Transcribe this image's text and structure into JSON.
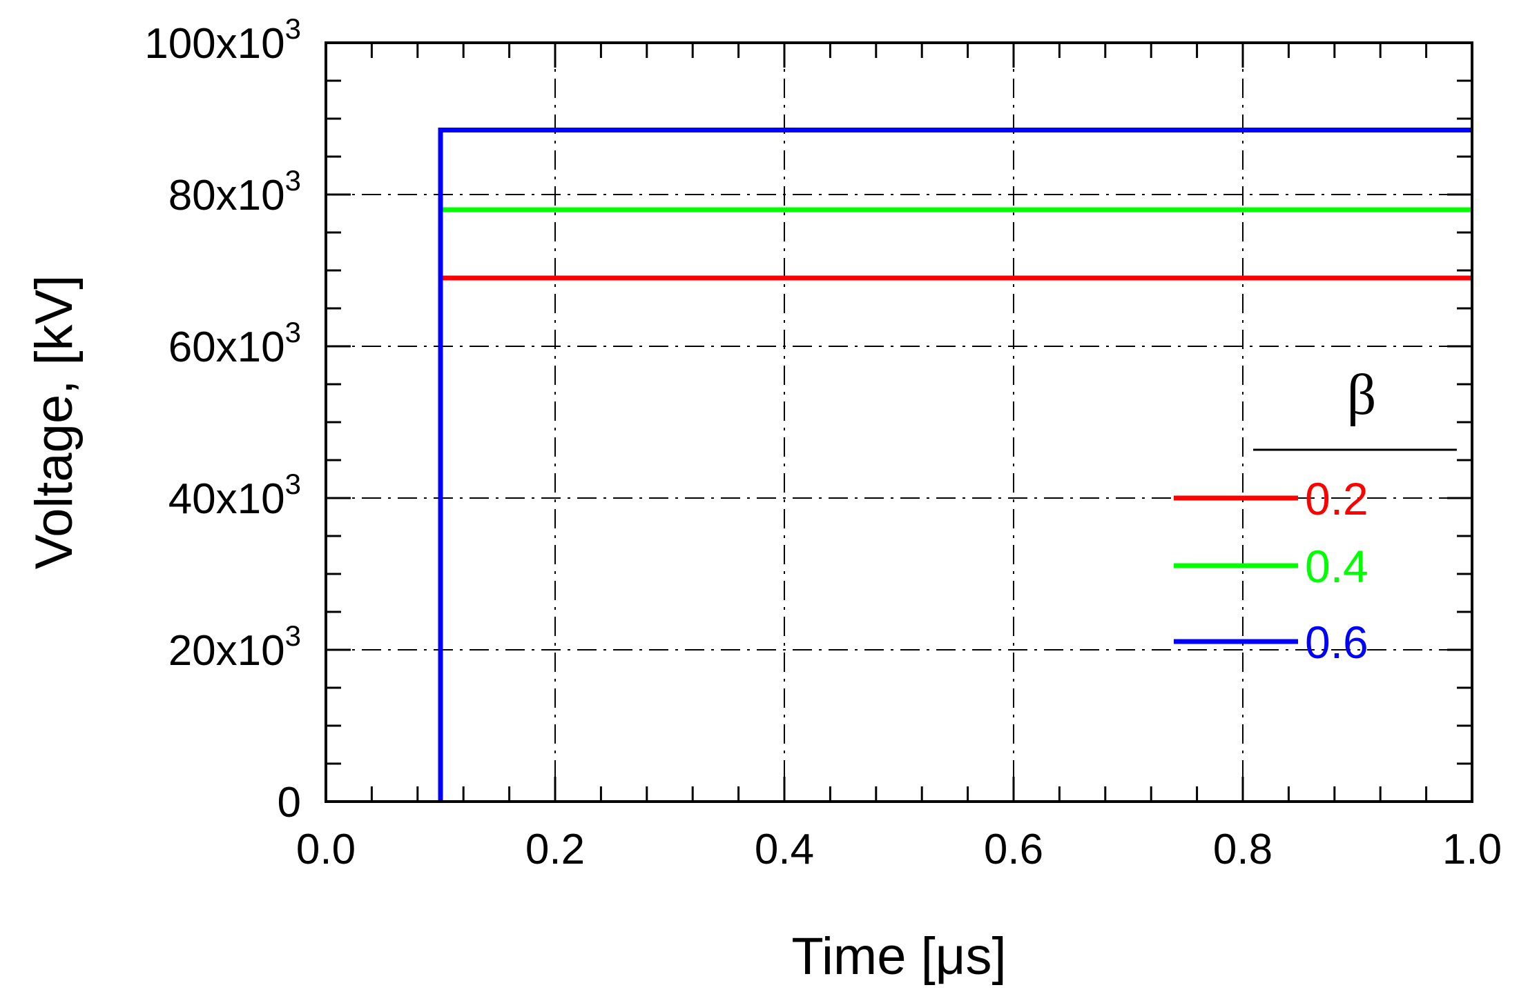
{
  "chart_data": {
    "type": "line",
    "xlabel": "Time [μs]",
    "ylabel": "Voltage, [kV]",
    "xlim": [
      0.0,
      1.0
    ],
    "ylim": [
      0,
      100000
    ],
    "x_ticks": [
      "0.0",
      "0.2",
      "0.4",
      "0.6",
      "0.8",
      "1.0"
    ],
    "y_ticks": [
      {
        "base": "0",
        "exp": ""
      },
      {
        "base": "20x10",
        "exp": "3"
      },
      {
        "base": "40x10",
        "exp": "3"
      },
      {
        "base": "60x10",
        "exp": "3"
      },
      {
        "base": "80x10",
        "exp": "3"
      },
      {
        "base": "100x10",
        "exp": "3"
      }
    ],
    "grid": true,
    "legend": {
      "title": "β",
      "placement": "right"
    },
    "series": [
      {
        "name": "0.2",
        "color": "#ff0000",
        "x": [
          0.1,
          0.1,
          1.0
        ],
        "y": [
          0,
          69000,
          69000
        ]
      },
      {
        "name": "0.4",
        "color": "#00ff00",
        "x": [
          0.1,
          0.1,
          1.0
        ],
        "y": [
          0,
          78000,
          78000
        ]
      },
      {
        "name": "0.6",
        "color": "#0000ff",
        "x": [
          0.1,
          0.1,
          1.0
        ],
        "y": [
          0,
          88500,
          88500
        ]
      }
    ]
  }
}
